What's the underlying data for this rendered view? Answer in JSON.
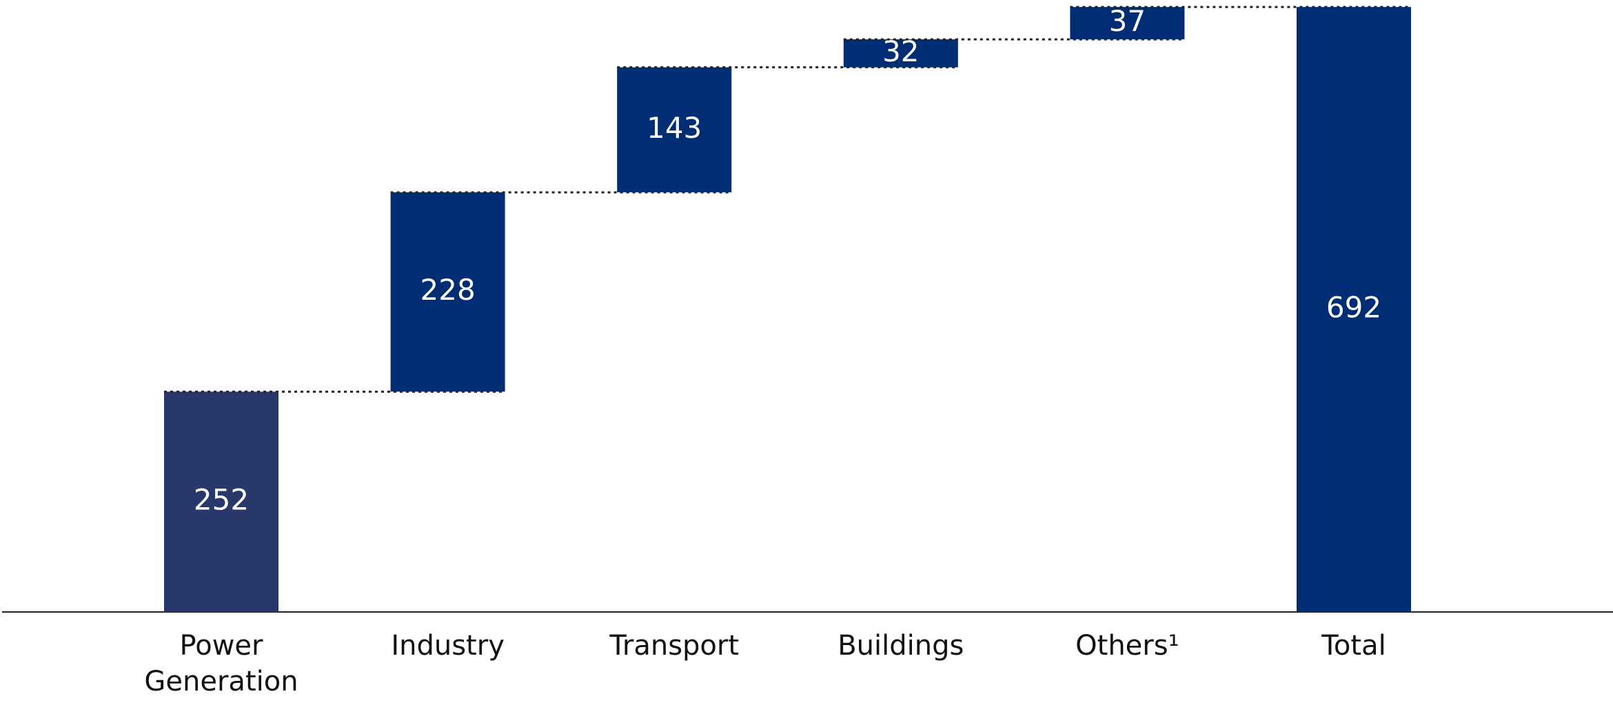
{
  "chart_data": {
    "type": "waterfall",
    "categories": [
      "Power Generation",
      "Industry",
      "Transport",
      "Buildings",
      "Others¹"
    ],
    "values": [
      252,
      228,
      143,
      32,
      37
    ],
    "colors": [
      "#29386b",
      "#002d74",
      "#002d74",
      "#002d74",
      "#002d74"
    ],
    "total_label": "Total",
    "total": 692,
    "total_color": "#002d74",
    "ylim": [
      0,
      700
    ]
  }
}
